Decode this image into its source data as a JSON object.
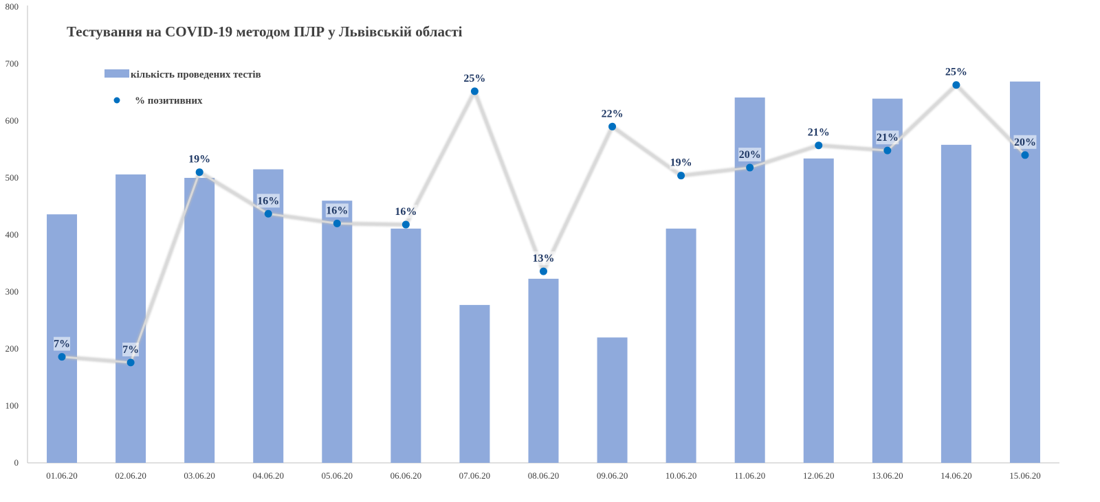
{
  "chart_data": {
    "type": "bar",
    "title": "Тестування на COVID-19 методом ПЛР у Львівській області",
    "categories": [
      "01.06.20",
      "02.06.20",
      "03.06.20",
      "04.06.20",
      "05.06.20",
      "06.06.20",
      "07.06.20",
      "08.06.20",
      "09.06.20",
      "10.06.20",
      "11.06.20",
      "12.06.20",
      "13.06.20",
      "14.06.20",
      "15.06.20"
    ],
    "series": [
      {
        "name": "кількість проведених тестів",
        "kind": "bar",
        "color": "#8faadc",
        "values": [
          436,
          506,
          500,
          515,
          460,
          411,
          277,
          323,
          220,
          411,
          641,
          534,
          639,
          558,
          669
        ]
      },
      {
        "name": "% позитивних",
        "kind": "line-markers",
        "color": "#0070c0",
        "line_color": "#d9d9d9",
        "values": [
          7,
          7,
          19,
          16,
          16,
          16,
          25,
          13,
          22,
          19,
          20,
          21,
          21,
          25,
          20
        ],
        "labels": [
          "7%",
          "7%",
          "19%",
          "16%",
          "16%",
          "16%",
          "25%",
          "13%",
          "22%",
          "19%",
          "20%",
          "21%",
          "21%",
          "25%",
          "20%"
        ],
        "y_positions": [
          186,
          176,
          510,
          437,
          420,
          418,
          652,
          336,
          590,
          504,
          518,
          557,
          548,
          663,
          540
        ]
      }
    ],
    "ylim": [
      0,
      800
    ],
    "yticks": [
      "0",
      "100",
      "200",
      "300",
      "400",
      "500",
      "600",
      "700",
      "800"
    ],
    "xlabel": "",
    "ylabel": "",
    "grid": false,
    "legend_position": "top-left"
  }
}
